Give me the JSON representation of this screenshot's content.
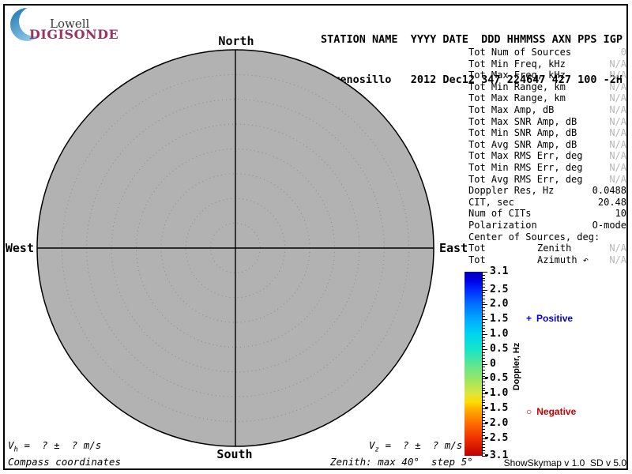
{
  "logo": {
    "line1": "Lowell",
    "line2": "DIGISONDE",
    "accent_color": "#1a73ae",
    "brand_color": "#993366"
  },
  "header": {
    "line1": "STATION NAME  YYYY DATE  DDD HHMMSS AXN PPS IGP",
    "line2": "El Arenosillo   2012 Dec12 347 224647 427 100 -2H"
  },
  "polar": {
    "compass": {
      "north": "North",
      "east": "East",
      "south": "South",
      "west": "West"
    },
    "max_zenith_deg": 40,
    "step_deg": 5,
    "fill_color": "#b2b2b2"
  },
  "stats": {
    "rows": [
      {
        "label": "Tot Num of Sources",
        "value": "0",
        "muted": true
      },
      {
        "label": "Tot Min Freq, kHz",
        "value": "N/A",
        "muted": true
      },
      {
        "label": "Tot Max Freq, kHz",
        "value": "N/A",
        "muted": true
      },
      {
        "label": "Tot Min Range, km",
        "value": "N/A",
        "muted": true
      },
      {
        "label": "Tot Max Range, km",
        "value": "N/A",
        "muted": true
      },
      {
        "label": "Tot Max Amp, dB",
        "value": "N/A",
        "muted": true
      },
      {
        "label": "Tot Max SNR Amp, dB",
        "value": "N/A",
        "muted": true
      },
      {
        "label": "Tot Min SNR Amp, dB",
        "value": "N/A",
        "muted": true
      },
      {
        "label": "Tot Avg SNR Amp, dB",
        "value": "N/A",
        "muted": true
      },
      {
        "label": "Tot Max RMS Err, deg",
        "value": "N/A",
        "muted": true
      },
      {
        "label": "Tot Min RMS Err, deg",
        "value": "N/A",
        "muted": true
      },
      {
        "label": "Tot Avg RMS Err, deg",
        "value": "N/A",
        "muted": true
      },
      {
        "label": "Doppler Res, Hz",
        "value": "0.0488",
        "muted": false
      },
      {
        "label": "CIT, sec",
        "value": "20.48",
        "muted": false
      },
      {
        "label": "Num of CITs",
        "value": "10",
        "muted": false
      },
      {
        "label": "Polarization",
        "value": "O-mode",
        "muted": false
      },
      {
        "label": "Center of Sources, deg:",
        "value": "",
        "muted": false
      },
      {
        "label": "Tot",
        "mid": "Zenith",
        "value": "N/A",
        "muted": true
      },
      {
        "label": "Tot",
        "mid": "Azimuth ↶",
        "value": "N/A",
        "muted": true
      }
    ]
  },
  "colorbar": {
    "axis_label": "Doppler, Hz",
    "max": 3.1,
    "min": -3.1,
    "minor_step": 0.1,
    "major_ticks": [
      "3.1",
      "2.5",
      "2.0",
      "1.5",
      "1.0",
      "0.5",
      "0",
      "-0.5",
      "-1.0",
      "-1.5",
      "-2.0",
      "-2.5",
      "-3.1"
    ],
    "gradient_stops": [
      [
        0,
        "#0000b0"
      ],
      [
        4.8,
        "#0000e6"
      ],
      [
        9.7,
        "#0028ff"
      ],
      [
        17.7,
        "#0070ff"
      ],
      [
        25.8,
        "#00aaff"
      ],
      [
        33.9,
        "#00d4f0"
      ],
      [
        41.9,
        "#14e6c8"
      ],
      [
        46.8,
        "#3ce6aa"
      ],
      [
        50,
        "#5ae696"
      ],
      [
        58.1,
        "#96e664"
      ],
      [
        66.1,
        "#dce63c"
      ],
      [
        71,
        "#ffdc00"
      ],
      [
        74.2,
        "#ffb400"
      ],
      [
        82.3,
        "#ff6e00"
      ],
      [
        90.3,
        "#f03200"
      ],
      [
        100,
        "#be0000"
      ]
    ]
  },
  "legend": {
    "positive": {
      "marker": "+",
      "label": "Positive",
      "color": "#0000cc"
    },
    "negative": {
      "marker": "○",
      "label": "Negative",
      "color": "#cc0000"
    }
  },
  "footer": {
    "vh": {
      "base": "V",
      "sub": "h",
      "rest": " =  ? ±  ? m/s"
    },
    "vz": {
      "base": "V",
      "sub": "z",
      "rest": " =  ? ±  ? m/s"
    },
    "coords_note": "Compass coordinates",
    "zenith_note": "Zenith: max 40°  step 5°",
    "version": "ShowSkymap v 1.0  SD v 5.0"
  }
}
